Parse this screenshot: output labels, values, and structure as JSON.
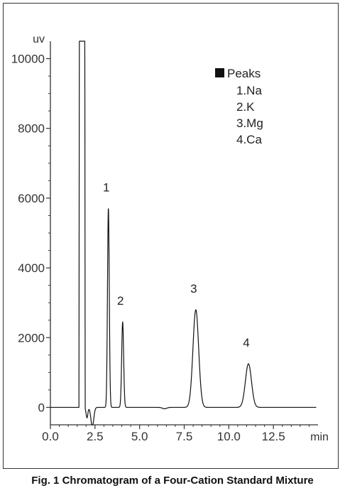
{
  "caption": "Fig. 1 Chromatogram of a Four-Cation Standard Mixture",
  "chart_data": {
    "type": "line",
    "title": "",
    "xlabel": "min",
    "ylabel": "uv",
    "xlim": [
      0,
      15
    ],
    "ylim": [
      -500,
      10500
    ],
    "x_ticks": [
      0.0,
      2.5,
      5.0,
      7.5,
      10.0,
      12.5
    ],
    "x_tick_labels": [
      "0.0",
      "2.5",
      "5.0",
      "7.5",
      "10.0",
      "12.5"
    ],
    "y_ticks": [
      0,
      2000,
      4000,
      6000,
      8000,
      10000
    ],
    "y_tick_labels": [
      "0",
      "2000",
      "4000",
      "6000",
      "8000",
      "10000"
    ],
    "grid": false,
    "legend": {
      "title": "Peaks",
      "placement": "top-right",
      "items": [
        "1.Na",
        "2.K",
        "3.Mg",
        "4.Ca"
      ]
    },
    "series": [
      {
        "color": "#111111",
        "peaks": [
          {
            "label": "1",
            "time": 3.25,
            "height": 5700,
            "width": 0.05
          },
          {
            "label": "2",
            "time": 4.05,
            "height": 2450,
            "width": 0.055
          },
          {
            "label": "3",
            "time": 8.15,
            "height": 2800,
            "width": 0.16
          },
          {
            "label": "4",
            "time": 11.1,
            "height": 1250,
            "width": 0.17
          }
        ],
        "solvent_front": {
          "start": 1.6,
          "end": 1.95,
          "dip_min": -550,
          "dip_time": 2.35
        }
      }
    ]
  }
}
